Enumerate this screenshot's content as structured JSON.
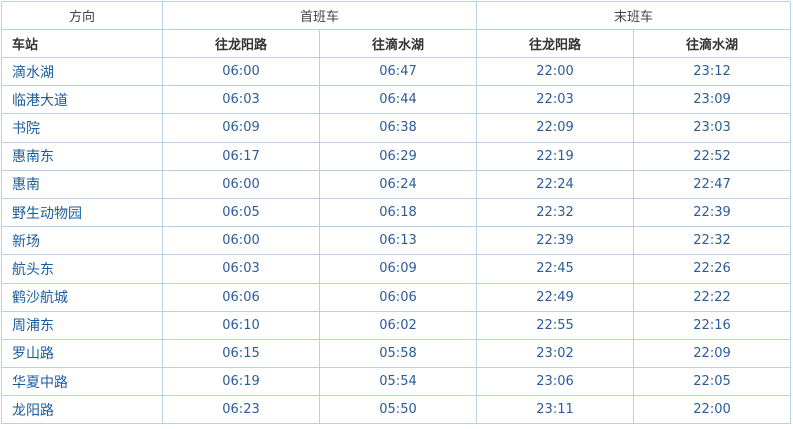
{
  "header": {
    "direction": "方向",
    "first_train": "首班车",
    "last_train": "末班车",
    "station": "车站",
    "to_longyang": "往龙阳路",
    "to_dishui": "往滴水湖"
  },
  "rows": [
    {
      "station": "滴水湖",
      "first_longyang": "06:00",
      "first_dishui": "06:47",
      "last_longyang": "22:00",
      "last_dishui": "23:12"
    },
    {
      "station": "临港大道",
      "first_longyang": "06:03",
      "first_dishui": "06:44",
      "last_longyang": "22:03",
      "last_dishui": "23:09"
    },
    {
      "station": "书院",
      "first_longyang": "06:09",
      "first_dishui": "06:38",
      "last_longyang": "22:09",
      "last_dishui": "23:03"
    },
    {
      "station": "惠南东",
      "first_longyang": "06:17",
      "first_dishui": "06:29",
      "last_longyang": "22:19",
      "last_dishui": "22:52"
    },
    {
      "station": "惠南",
      "first_longyang": "06:00",
      "first_dishui": "06:24",
      "last_longyang": "22:24",
      "last_dishui": "22:47"
    },
    {
      "station": "野生动物园",
      "first_longyang": "06:05",
      "first_dishui": "06:18",
      "last_longyang": "22:32",
      "last_dishui": "22:39"
    },
    {
      "station": "新场",
      "first_longyang": "06:00",
      "first_dishui": "06:13",
      "last_longyang": "22:39",
      "last_dishui": "22:32"
    },
    {
      "station": "航头东",
      "first_longyang": "06:03",
      "first_dishui": "06:09",
      "last_longyang": "22:45",
      "last_dishui": "22:26"
    },
    {
      "station": "鹤沙航城",
      "first_longyang": "06:06",
      "first_dishui": "06:06",
      "last_longyang": "22:49",
      "last_dishui": "22:22"
    },
    {
      "station": "周浦东",
      "first_longyang": "06:10",
      "first_dishui": "06:02",
      "last_longyang": "22:55",
      "last_dishui": "22:16"
    },
    {
      "station": "罗山路",
      "first_longyang": "06:15",
      "first_dishui": "05:58",
      "last_longyang": "23:02",
      "last_dishui": "22:09"
    },
    {
      "station": "华夏中路",
      "first_longyang": "06:19",
      "first_dishui": "05:54",
      "last_longyang": "23:06",
      "last_dishui": "22:05"
    },
    {
      "station": "龙阳路",
      "first_longyang": "06:23",
      "first_dishui": "05:50",
      "last_longyang": "23:11",
      "last_dishui": "22:00"
    }
  ]
}
